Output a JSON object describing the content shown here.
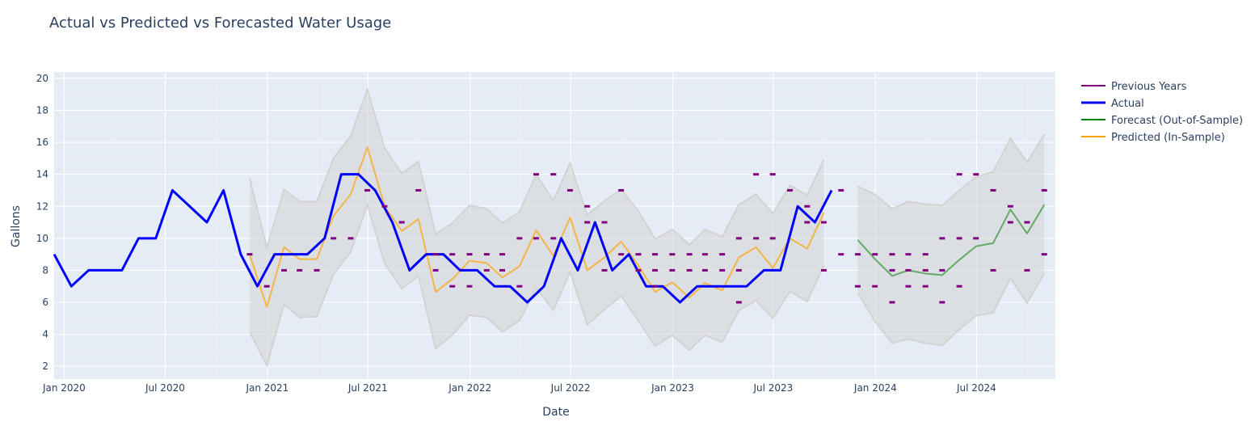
{
  "chart_data": {
    "type": "line",
    "title": "Actual vs Predicted vs Forecasted Water Usage",
    "xlabel": "Date",
    "ylabel": "Gallons",
    "ylim": [
      1.2,
      20.4
    ],
    "xlim": [
      "2019-12-14",
      "2024-11-20"
    ],
    "grid": true,
    "legend_position": "right",
    "colors": {
      "previous_years": "#800080",
      "actual": "#0000ff",
      "forecast": "#008000",
      "predicted": "#ffa500",
      "band": "#d3d3d3",
      "plot_bg": "#e5ecf6",
      "grid": "#ffffff",
      "text": "#2a3f5f"
    },
    "x_ticks": [
      {
        "date": "2020-01-01",
        "label": "Jan 2020"
      },
      {
        "date": "2020-07-01",
        "label": "Jul 2020"
      },
      {
        "date": "2021-01-01",
        "label": "Jan 2021"
      },
      {
        "date": "2021-07-01",
        "label": "Jul 2021"
      },
      {
        "date": "2022-01-01",
        "label": "Jan 2022"
      },
      {
        "date": "2022-07-01",
        "label": "Jul 2022"
      },
      {
        "date": "2023-01-01",
        "label": "Jan 2023"
      },
      {
        "date": "2023-07-01",
        "label": "Jul 2023"
      },
      {
        "date": "2024-01-01",
        "label": "Jan 2024"
      },
      {
        "date": "2024-07-01",
        "label": "Jul 2024"
      }
    ],
    "y_ticks": [
      2,
      4,
      6,
      8,
      10,
      12,
      14,
      16,
      18,
      20
    ],
    "series": [
      {
        "name": "Previous Years",
        "mode": "markers",
        "points": [
          [
            "2020-11-30",
            9
          ],
          [
            "2020-12-31",
            7
          ],
          [
            "2021-01-31",
            8
          ],
          [
            "2021-02-28",
            8
          ],
          [
            "2021-03-31",
            8
          ],
          [
            "2021-04-30",
            10
          ],
          [
            "2021-05-31",
            10
          ],
          [
            "2021-06-30",
            13
          ],
          [
            "2021-07-31",
            12
          ],
          [
            "2021-08-31",
            11
          ],
          [
            "2021-09-30",
            13
          ],
          [
            "2021-10-31",
            9
          ],
          [
            "2021-10-31",
            8
          ],
          [
            "2021-11-30",
            9
          ],
          [
            "2021-11-30",
            7
          ],
          [
            "2021-12-31",
            9
          ],
          [
            "2021-12-31",
            7
          ],
          [
            "2022-01-31",
            9
          ],
          [
            "2022-01-31",
            8
          ],
          [
            "2022-02-28",
            9
          ],
          [
            "2022-02-28",
            8
          ],
          [
            "2022-03-31",
            10
          ],
          [
            "2022-03-31",
            7
          ],
          [
            "2022-04-30",
            14
          ],
          [
            "2022-04-30",
            10
          ],
          [
            "2022-05-31",
            14
          ],
          [
            "2022-05-31",
            10
          ],
          [
            "2022-06-30",
            13
          ],
          [
            "2022-07-31",
            12
          ],
          [
            "2022-07-31",
            11
          ],
          [
            "2022-08-31",
            11
          ],
          [
            "2022-08-31",
            8
          ],
          [
            "2022-09-30",
            13
          ],
          [
            "2022-09-30",
            9
          ],
          [
            "2022-10-31",
            9
          ],
          [
            "2022-10-31",
            8
          ],
          [
            "2022-11-30",
            9
          ],
          [
            "2022-11-30",
            8
          ],
          [
            "2022-11-30",
            7
          ],
          [
            "2022-12-31",
            9
          ],
          [
            "2022-12-31",
            8
          ],
          [
            "2023-01-31",
            9
          ],
          [
            "2023-01-31",
            8
          ],
          [
            "2023-02-28",
            9
          ],
          [
            "2023-02-28",
            8
          ],
          [
            "2023-03-31",
            9
          ],
          [
            "2023-03-31",
            8
          ],
          [
            "2023-04-30",
            10
          ],
          [
            "2023-04-30",
            8
          ],
          [
            "2023-04-30",
            6
          ],
          [
            "2023-05-31",
            14
          ],
          [
            "2023-05-31",
            10
          ],
          [
            "2023-06-30",
            14
          ],
          [
            "2023-06-30",
            10
          ],
          [
            "2023-07-31",
            13
          ],
          [
            "2023-08-31",
            12
          ],
          [
            "2023-08-31",
            11
          ],
          [
            "2023-09-30",
            11
          ],
          [
            "2023-09-30",
            8
          ],
          [
            "2023-10-31",
            13
          ],
          [
            "2023-10-31",
            9
          ],
          [
            "2023-11-30",
            9
          ],
          [
            "2023-11-30",
            7
          ],
          [
            "2023-12-31",
            9
          ],
          [
            "2023-12-31",
            7
          ],
          [
            "2024-01-31",
            9
          ],
          [
            "2024-01-31",
            8
          ],
          [
            "2024-01-31",
            6
          ],
          [
            "2024-02-29",
            9
          ],
          [
            "2024-02-29",
            8
          ],
          [
            "2024-02-29",
            7
          ],
          [
            "2024-03-31",
            9
          ],
          [
            "2024-03-31",
            8
          ],
          [
            "2024-03-31",
            7
          ],
          [
            "2024-04-30",
            10
          ],
          [
            "2024-04-30",
            8
          ],
          [
            "2024-04-30",
            6
          ],
          [
            "2024-05-31",
            14
          ],
          [
            "2024-05-31",
            10
          ],
          [
            "2024-05-31",
            7
          ],
          [
            "2024-06-30",
            14
          ],
          [
            "2024-06-30",
            10
          ],
          [
            "2024-07-31",
            13
          ],
          [
            "2024-07-31",
            8
          ],
          [
            "2024-08-31",
            12
          ],
          [
            "2024-08-31",
            11
          ],
          [
            "2024-09-30",
            11
          ],
          [
            "2024-09-30",
            8
          ],
          [
            "2024-10-31",
            13
          ],
          [
            "2024-10-31",
            9
          ]
        ]
      },
      {
        "name": "Actual",
        "mode": "lines",
        "points": [
          [
            "2019-12-14",
            9
          ],
          [
            "2020-01-14",
            7
          ],
          [
            "2020-02-14",
            8
          ],
          [
            "2020-03-14",
            8
          ],
          [
            "2020-04-14",
            8
          ],
          [
            "2020-05-14",
            10
          ],
          [
            "2020-06-14",
            10
          ],
          [
            "2020-07-14",
            13
          ],
          [
            "2020-08-14",
            12
          ],
          [
            "2020-09-14",
            11
          ],
          [
            "2020-10-14",
            13
          ],
          [
            "2020-11-14",
            9
          ],
          [
            "2020-12-14",
            7
          ],
          [
            "2021-01-14",
            9
          ],
          [
            "2021-02-14",
            9
          ],
          [
            "2021-03-14",
            9
          ],
          [
            "2021-04-14",
            10
          ],
          [
            "2021-05-14",
            14
          ],
          [
            "2021-06-14",
            14
          ],
          [
            "2021-07-14",
            13
          ],
          [
            "2021-08-14",
            11
          ],
          [
            "2021-09-14",
            8
          ],
          [
            "2021-10-14",
            9
          ],
          [
            "2021-11-14",
            9
          ],
          [
            "2021-12-14",
            8
          ],
          [
            "2022-01-14",
            8
          ],
          [
            "2022-02-14",
            7
          ],
          [
            "2022-03-14",
            7
          ],
          [
            "2022-04-14",
            6
          ],
          [
            "2022-05-14",
            7
          ],
          [
            "2022-06-14",
            10
          ],
          [
            "2022-07-14",
            8
          ],
          [
            "2022-08-14",
            11
          ],
          [
            "2022-09-14",
            8
          ],
          [
            "2022-10-14",
            9
          ],
          [
            "2022-11-14",
            7
          ],
          [
            "2022-12-14",
            7
          ],
          [
            "2023-01-14",
            6
          ],
          [
            "2023-02-14",
            7
          ],
          [
            "2023-03-14",
            7
          ],
          [
            "2023-04-14",
            7
          ],
          [
            "2023-05-14",
            7
          ],
          [
            "2023-06-14",
            8
          ],
          [
            "2023-07-14",
            8
          ],
          [
            "2023-08-14",
            12
          ],
          [
            "2023-09-14",
            11
          ],
          [
            "2023-10-14",
            13
          ]
        ]
      },
      {
        "name": "Forecast (Out-of-Sample)",
        "mode": "lines",
        "points": [
          [
            "2023-11-30",
            9.9
          ],
          [
            "2023-12-31",
            8.7
          ],
          [
            "2024-01-31",
            7.65
          ],
          [
            "2024-02-29",
            8.0
          ],
          [
            "2024-03-31",
            7.8
          ],
          [
            "2024-04-30",
            7.7
          ],
          [
            "2024-05-31",
            8.65
          ],
          [
            "2024-06-30",
            9.5
          ],
          [
            "2024-07-31",
            9.7
          ],
          [
            "2024-08-31",
            11.8
          ],
          [
            "2024-09-30",
            10.3
          ],
          [
            "2024-10-31",
            12.1
          ]
        ],
        "band_lower": [
          6.6,
          4.8,
          3.45,
          3.7,
          3.45,
          3.3,
          4.3,
          5.15,
          5.35,
          7.5,
          5.95,
          7.8
        ],
        "band_upper": [
          13.25,
          12.75,
          11.85,
          12.3,
          12.15,
          12.05,
          13.0,
          13.85,
          14.15,
          16.25,
          14.75,
          16.5
        ]
      },
      {
        "name": "Predicted (In-Sample)",
        "mode": "lines",
        "points": [
          [
            "2020-11-30",
            9.0
          ],
          [
            "2020-12-31",
            5.7
          ],
          [
            "2021-01-31",
            9.45
          ],
          [
            "2021-02-28",
            8.7
          ],
          [
            "2021-03-31",
            8.7
          ],
          [
            "2021-04-30",
            11.4
          ],
          [
            "2021-05-31",
            12.75
          ],
          [
            "2021-06-30",
            15.7
          ],
          [
            "2021-07-31",
            12.0
          ],
          [
            "2021-08-31",
            10.45
          ],
          [
            "2021-09-30",
            11.2
          ],
          [
            "2021-10-31",
            6.65
          ],
          [
            "2021-11-30",
            7.45
          ],
          [
            "2021-12-31",
            8.6
          ],
          [
            "2022-01-31",
            8.45
          ],
          [
            "2022-02-28",
            7.55
          ],
          [
            "2022-03-31",
            8.25
          ],
          [
            "2022-04-30",
            10.5
          ],
          [
            "2022-05-31",
            8.9
          ],
          [
            "2022-06-30",
            11.3
          ],
          [
            "2022-07-31",
            8.0
          ],
          [
            "2022-08-31",
            8.8
          ],
          [
            "2022-09-30",
            9.8
          ],
          [
            "2022-10-31",
            8.3
          ],
          [
            "2022-11-30",
            6.65
          ],
          [
            "2022-12-31",
            7.25
          ],
          [
            "2023-01-31",
            6.3
          ],
          [
            "2023-02-28",
            7.2
          ],
          [
            "2023-03-31",
            6.75
          ],
          [
            "2023-04-30",
            8.8
          ],
          [
            "2023-05-31",
            9.45
          ],
          [
            "2023-06-30",
            8.15
          ],
          [
            "2023-07-31",
            10.0
          ],
          [
            "2023-08-31",
            9.35
          ],
          [
            "2023-09-30",
            11.6
          ]
        ],
        "band_lower": [
          4.15,
          2.05,
          5.85,
          5.05,
          5.1,
          7.75,
          9.15,
          12.1,
          8.45,
          6.85,
          7.65,
          3.1,
          3.95,
          5.2,
          5.05,
          4.15,
          4.85,
          6.9,
          5.5,
          7.9,
          4.6,
          5.55,
          6.4,
          4.85,
          3.25,
          3.95,
          3.0,
          3.95,
          3.5,
          5.5,
          6.1,
          5.0,
          6.7,
          6.05,
          8.3
        ],
        "band_upper": [
          13.8,
          9.4,
          13.05,
          12.3,
          12.3,
          15.0,
          16.4,
          19.3,
          15.65,
          14.05,
          14.8,
          10.25,
          10.95,
          12.05,
          11.85,
          10.95,
          11.65,
          14.0,
          12.35,
          14.7,
          11.45,
          12.35,
          13.05,
          11.7,
          9.95,
          10.55,
          9.6,
          10.55,
          10.1,
          12.1,
          12.75,
          11.55,
          13.3,
          12.7,
          14.9
        ]
      }
    ]
  }
}
